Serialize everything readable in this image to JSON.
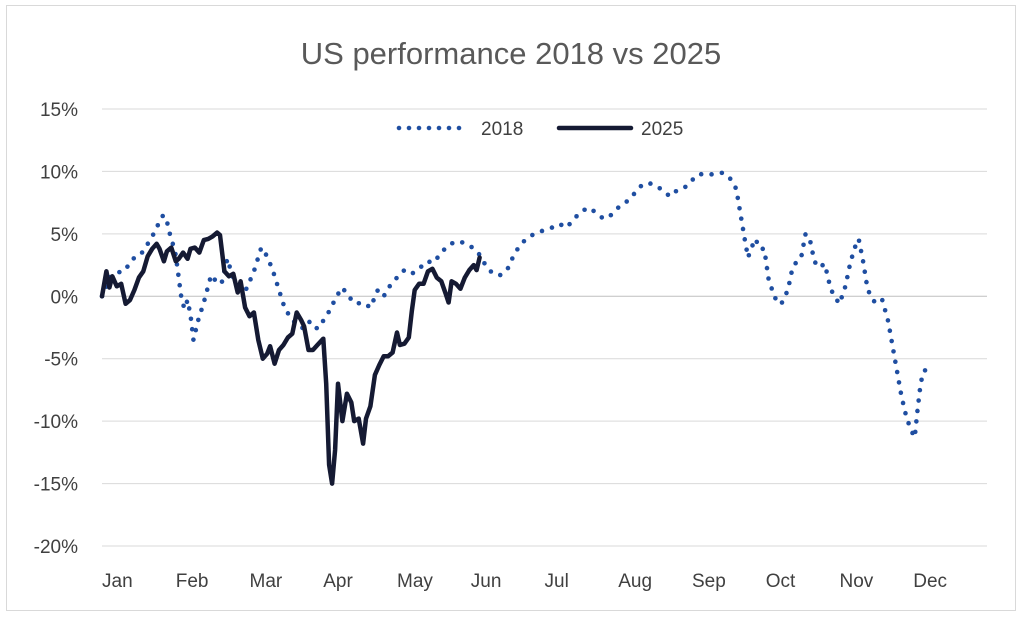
{
  "chart_data": {
    "type": "line",
    "title": "US performance 2018 vs 2025",
    "xlabel": "",
    "ylabel": "",
    "ylim": [
      -20,
      15
    ],
    "y_ticks": [
      "15%",
      "10%",
      "5%",
      "0%",
      "-5%",
      "-10%",
      "-15%",
      "-20%"
    ],
    "x_ticks": [
      "Jan",
      "Feb",
      "Mar",
      "Apr",
      "May",
      "Jun",
      "Jul",
      "Aug",
      "Sep",
      "Oct",
      "Nov",
      "Dec"
    ],
    "x_unit": "month (1 = start of Jan, 13 = end of Dec)",
    "grid": "horizontal",
    "legend": "top-center",
    "series": [
      {
        "name": "2018",
        "style": "dotted",
        "color": "#1f4ea1",
        "points": [
          [
            1.0,
            0.0
          ],
          [
            1.06,
            0.8
          ],
          [
            1.12,
            1.6
          ],
          [
            1.2,
            1.9
          ],
          [
            1.3,
            2.0
          ],
          [
            1.42,
            3.0
          ],
          [
            1.52,
            3.3
          ],
          [
            1.6,
            4.0
          ],
          [
            1.66,
            4.6
          ],
          [
            1.72,
            5.2
          ],
          [
            1.78,
            6.0
          ],
          [
            1.83,
            6.5
          ],
          [
            1.88,
            6.0
          ],
          [
            1.92,
            5.0
          ],
          [
            1.96,
            4.2
          ],
          [
            2.0,
            3.3
          ],
          [
            2.04,
            1.5
          ],
          [
            2.08,
            -0.3
          ],
          [
            2.12,
            -1.0
          ],
          [
            2.16,
            -0.3
          ],
          [
            2.2,
            -1.5
          ],
          [
            2.24,
            -3.5
          ],
          [
            2.3,
            -2.0
          ],
          [
            2.38,
            -0.5
          ],
          [
            2.48,
            1.7
          ],
          [
            2.56,
            1.1
          ],
          [
            2.62,
            1.0
          ],
          [
            2.7,
            3.0
          ],
          [
            2.78,
            1.4
          ],
          [
            2.86,
            0.6
          ],
          [
            2.96,
            0.6
          ],
          [
            3.06,
            2.0
          ],
          [
            3.16,
            3.9
          ],
          [
            3.24,
            3.2
          ],
          [
            3.32,
            2.0
          ],
          [
            3.4,
            0.5
          ],
          [
            3.48,
            -1.0
          ],
          [
            3.56,
            -1.7
          ],
          [
            3.64,
            -2.3
          ],
          [
            3.74,
            -2.6
          ],
          [
            3.82,
            -2.0
          ],
          [
            3.92,
            -2.6
          ],
          [
            4.02,
            -1.8
          ],
          [
            4.1,
            -1.0
          ],
          [
            4.18,
            0.0
          ],
          [
            4.26,
            0.7
          ],
          [
            4.34,
            0.0
          ],
          [
            4.44,
            -0.6
          ],
          [
            4.54,
            -0.5
          ],
          [
            4.64,
            -0.9
          ],
          [
            4.74,
            0.5
          ],
          [
            4.82,
            0.0
          ],
          [
            4.9,
            0.8
          ],
          [
            5.0,
            1.5
          ],
          [
            5.1,
            2.1
          ],
          [
            5.2,
            1.8
          ],
          [
            5.3,
            2.2
          ],
          [
            5.4,
            2.8
          ],
          [
            5.5,
            2.7
          ],
          [
            5.6,
            3.5
          ],
          [
            5.7,
            4.1
          ],
          [
            5.8,
            4.4
          ],
          [
            5.9,
            4.3
          ],
          [
            6.0,
            4.0
          ],
          [
            6.1,
            3.5
          ],
          [
            6.2,
            2.5
          ],
          [
            6.3,
            1.8
          ],
          [
            6.4,
            1.7
          ],
          [
            6.5,
            2.2
          ],
          [
            6.6,
            3.5
          ],
          [
            6.7,
            4.3
          ],
          [
            6.8,
            4.8
          ],
          [
            6.9,
            5.1
          ],
          [
            7.0,
            5.3
          ],
          [
            7.1,
            5.5
          ],
          [
            7.2,
            5.8
          ],
          [
            7.3,
            5.5
          ],
          [
            7.4,
            6.2
          ],
          [
            7.5,
            6.8
          ],
          [
            7.6,
            7.1
          ],
          [
            7.7,
            6.7
          ],
          [
            7.8,
            6.2
          ],
          [
            7.9,
            6.5
          ],
          [
            8.0,
            7.1
          ],
          [
            8.1,
            7.5
          ],
          [
            8.2,
            8.1
          ],
          [
            8.3,
            8.8
          ],
          [
            8.4,
            9.1
          ],
          [
            8.5,
            8.9
          ],
          [
            8.6,
            8.5
          ],
          [
            8.7,
            8.0
          ],
          [
            8.8,
            8.5
          ],
          [
            8.9,
            8.7
          ],
          [
            9.0,
            9.3
          ],
          [
            9.1,
            9.8
          ],
          [
            9.2,
            9.7
          ],
          [
            9.3,
            9.8
          ],
          [
            9.4,
            9.9
          ],
          [
            9.5,
            9.6
          ],
          [
            9.6,
            8.6
          ],
          [
            9.66,
            6.5
          ],
          [
            9.72,
            4.4
          ],
          [
            9.76,
            3.1
          ],
          [
            9.8,
            3.8
          ],
          [
            9.86,
            4.6
          ],
          [
            9.92,
            3.8
          ],
          [
            9.98,
            3.8
          ],
          [
            10.04,
            1.3
          ],
          [
            10.1,
            0.3
          ],
          [
            10.16,
            -0.6
          ],
          [
            10.22,
            -0.5
          ],
          [
            10.3,
            0.5
          ],
          [
            10.36,
            2.2
          ],
          [
            10.42,
            2.8
          ],
          [
            10.48,
            3.1
          ],
          [
            10.54,
            5.0
          ],
          [
            10.6,
            4.5
          ],
          [
            10.66,
            2.8
          ],
          [
            10.72,
            2.3
          ],
          [
            10.8,
            2.6
          ],
          [
            10.88,
            0.6
          ],
          [
            10.94,
            -0.1
          ],
          [
            11.0,
            -0.6
          ],
          [
            11.08,
            0.8
          ],
          [
            11.14,
            2.5
          ],
          [
            11.2,
            3.8
          ],
          [
            11.26,
            4.6
          ],
          [
            11.32,
            2.8
          ],
          [
            11.38,
            0.6
          ],
          [
            11.44,
            -0.2
          ],
          [
            11.5,
            -0.6
          ],
          [
            11.58,
            -0.3
          ],
          [
            11.66,
            -2.0
          ],
          [
            11.72,
            -4.0
          ],
          [
            11.78,
            -6.0
          ],
          [
            11.84,
            -8.0
          ],
          [
            11.9,
            -9.5
          ],
          [
            11.96,
            -10.6
          ],
          [
            12.02,
            -11.3
          ],
          [
            12.06,
            -9.0
          ],
          [
            12.1,
            -7.0
          ],
          [
            12.14,
            -6.0
          ],
          [
            12.2,
            -5.8
          ]
        ]
      },
      {
        "name": "2025",
        "style": "solid",
        "color": "#151a33",
        "points": [
          [
            1.0,
            0.0
          ],
          [
            1.03,
            1.0
          ],
          [
            1.06,
            2.0
          ],
          [
            1.1,
            0.7
          ],
          [
            1.14,
            1.6
          ],
          [
            1.2,
            0.8
          ],
          [
            1.26,
            1.0
          ],
          [
            1.32,
            -0.6
          ],
          [
            1.38,
            -0.3
          ],
          [
            1.44,
            0.5
          ],
          [
            1.5,
            1.5
          ],
          [
            1.56,
            2.0
          ],
          [
            1.62,
            3.2
          ],
          [
            1.68,
            3.8
          ],
          [
            1.74,
            4.2
          ],
          [
            1.78,
            3.8
          ],
          [
            1.84,
            2.8
          ],
          [
            1.88,
            3.6
          ],
          [
            1.94,
            3.9
          ],
          [
            2.0,
            2.8
          ],
          [
            2.04,
            3.0
          ],
          [
            2.1,
            3.5
          ],
          [
            2.16,
            3.0
          ],
          [
            2.2,
            3.8
          ],
          [
            2.26,
            3.9
          ],
          [
            2.32,
            3.5
          ],
          [
            2.38,
            4.5
          ],
          [
            2.44,
            4.6
          ],
          [
            2.5,
            4.8
          ],
          [
            2.56,
            5.1
          ],
          [
            2.6,
            4.9
          ],
          [
            2.66,
            2.0
          ],
          [
            2.72,
            1.6
          ],
          [
            2.78,
            1.8
          ],
          [
            2.84,
            0.3
          ],
          [
            2.88,
            1.2
          ],
          [
            2.94,
            -0.9
          ],
          [
            3.0,
            -1.6
          ],
          [
            3.06,
            -1.3
          ],
          [
            3.12,
            -3.5
          ],
          [
            3.18,
            -5.0
          ],
          [
            3.24,
            -4.6
          ],
          [
            3.28,
            -4.0
          ],
          [
            3.34,
            -5.4
          ],
          [
            3.4,
            -4.3
          ],
          [
            3.46,
            -3.9
          ],
          [
            3.52,
            -3.3
          ],
          [
            3.58,
            -3.0
          ],
          [
            3.64,
            -1.3
          ],
          [
            3.7,
            -1.9
          ],
          [
            3.74,
            -2.4
          ],
          [
            3.8,
            -4.3
          ],
          [
            3.86,
            -4.3
          ],
          [
            3.92,
            -3.9
          ],
          [
            4.0,
            -3.4
          ],
          [
            4.04,
            -7.0
          ],
          [
            4.08,
            -13.5
          ],
          [
            4.12,
            -15.0
          ],
          [
            4.16,
            -12.3
          ],
          [
            4.2,
            -7.0
          ],
          [
            4.26,
            -10.0
          ],
          [
            4.32,
            -7.8
          ],
          [
            4.38,
            -8.5
          ],
          [
            4.42,
            -10.0
          ],
          [
            4.48,
            -9.8
          ],
          [
            4.54,
            -11.8
          ],
          [
            4.58,
            -9.8
          ],
          [
            4.64,
            -8.8
          ],
          [
            4.7,
            -6.3
          ],
          [
            4.76,
            -5.5
          ],
          [
            4.82,
            -4.8
          ],
          [
            4.88,
            -4.8
          ],
          [
            4.94,
            -4.5
          ],
          [
            5.0,
            -2.9
          ],
          [
            5.04,
            -3.9
          ],
          [
            5.1,
            -3.8
          ],
          [
            5.16,
            -3.3
          ],
          [
            5.2,
            -1.2
          ],
          [
            5.24,
            0.5
          ],
          [
            5.3,
            1.0
          ],
          [
            5.36,
            1.0
          ],
          [
            5.42,
            2.0
          ],
          [
            5.48,
            2.2
          ],
          [
            5.54,
            1.5
          ],
          [
            5.6,
            1.2
          ],
          [
            5.66,
            0.2
          ],
          [
            5.7,
            -0.5
          ],
          [
            5.74,
            1.2
          ],
          [
            5.8,
            1.0
          ],
          [
            5.86,
            0.6
          ],
          [
            5.92,
            1.5
          ],
          [
            5.98,
            2.1
          ],
          [
            6.04,
            2.5
          ],
          [
            6.08,
            2.1
          ],
          [
            6.12,
            3.1
          ]
        ]
      }
    ]
  }
}
